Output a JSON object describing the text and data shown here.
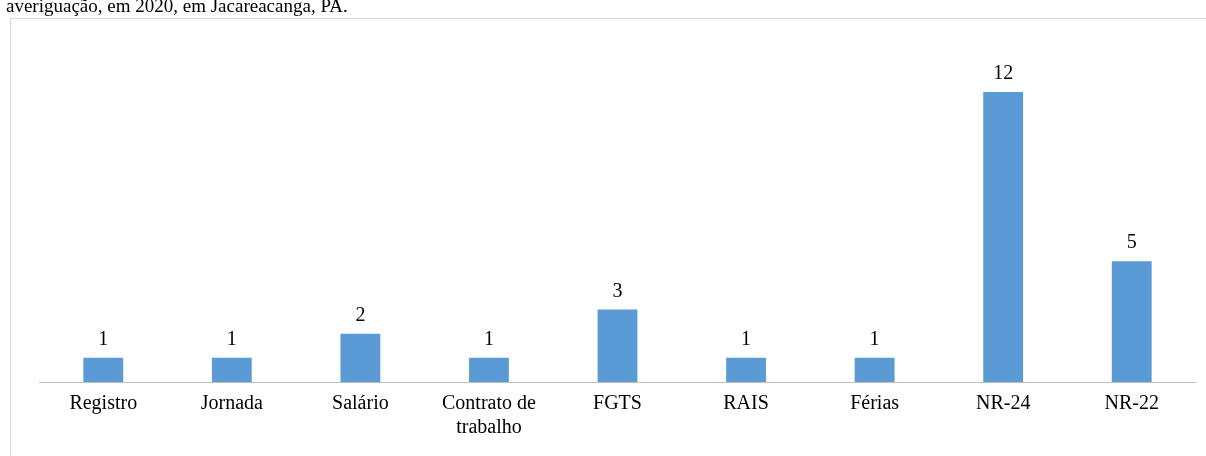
{
  "chart_data": {
    "type": "bar",
    "title": "averiguação, em 2020, em Jacareacanga, PA.",
    "categories": [
      "Registro",
      "Jornada",
      "Salário",
      "Contrato de trabalho",
      "FGTS",
      "RAIS",
      "Férias",
      "NR-24",
      "NR-22"
    ],
    "values": [
      1,
      1,
      2,
      1,
      3,
      1,
      1,
      12,
      5
    ],
    "color": "#5b9bd5",
    "data_labels": true,
    "grid": false,
    "legend": false
  }
}
